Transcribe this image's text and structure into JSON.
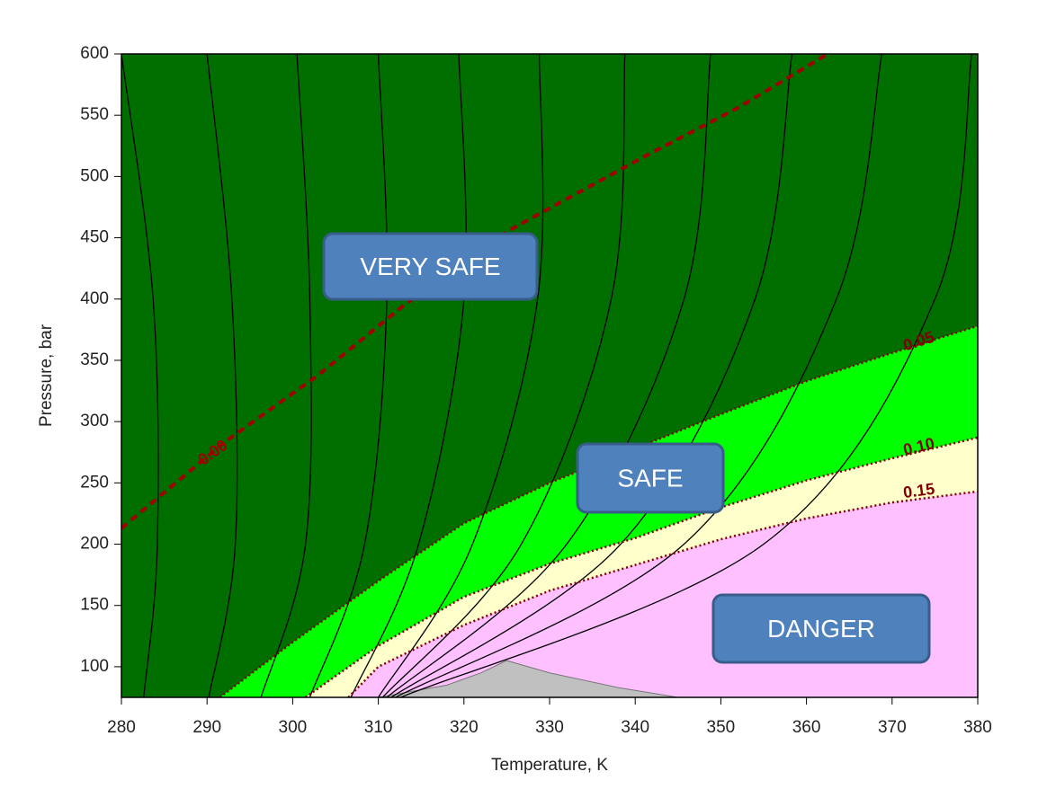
{
  "chart_data": {
    "type": "contour",
    "xlabel": "Temperature, K",
    "ylabel": "Pressure, bar",
    "xlim": [
      280,
      380
    ],
    "ylim": [
      75,
      600
    ],
    "xticks": [
      280,
      290,
      300,
      310,
      320,
      330,
      340,
      350,
      360,
      370,
      380
    ],
    "yticks": [
      100,
      150,
      200,
      250,
      300,
      350,
      400,
      450,
      500,
      550,
      600
    ],
    "background_color": "#006f00",
    "boundaries": [
      {
        "name": "0.05",
        "color": "#800000",
        "fill": "#00ff00",
        "style": "dotted",
        "x": [
          291.5,
          300,
          310,
          320,
          330,
          340,
          350,
          360,
          370,
          380
        ],
        "values": [
          75,
          120,
          170,
          217,
          250,
          278,
          306,
          333,
          356,
          378
        ]
      },
      {
        "name": "0.10",
        "color": "#800000",
        "fill": "#ffffcc",
        "style": "dotted",
        "x": [
          301.5,
          310,
          320,
          330,
          340,
          350,
          360,
          370,
          380
        ],
        "values": [
          75,
          117,
          157,
          184,
          205,
          230,
          252,
          270,
          287
        ]
      },
      {
        "name": "0.15",
        "color": "#800000",
        "fill": "#ffc0ff",
        "style": "dotted",
        "x": [
          306.5,
          310,
          320,
          330,
          340,
          350,
          360,
          370,
          380
        ],
        "values": [
          75,
          100,
          134,
          162,
          183,
          204,
          221,
          234,
          243
        ]
      },
      {
        "name": "0.00",
        "color": "#a00000",
        "style": "dashed",
        "x": [
          280,
          292,
          303,
          313,
          325,
          341,
          352,
          362.5
        ],
        "values": [
          213,
          283,
          338,
          395,
          455,
          516,
          556,
          600
        ]
      }
    ],
    "shaded": {
      "color": "#c0c0c0",
      "x": [
        310,
        318,
        322,
        325,
        330,
        338,
        345
      ],
      "values": [
        75,
        85,
        95,
        105,
        95,
        83,
        75
      ]
    },
    "isolines": [
      {
        "x": [
          280,
          283.7,
          284.2,
          282.6
        ],
        "values": [
          600,
          400,
          200,
          75
        ]
      },
      {
        "x": [
          290,
          292.9,
          293.3,
          290.2
        ],
        "values": [
          600,
          400,
          200,
          75
        ]
      },
      {
        "x": [
          300.5,
          302,
          301.5,
          296.3
        ],
        "values": [
          600,
          400,
          200,
          75
        ]
      },
      {
        "x": [
          310,
          311,
          308.4,
          302
        ],
        "values": [
          600,
          400,
          200,
          75
        ]
      },
      {
        "x": [
          319.4,
          320,
          314.7,
          306.8
        ],
        "values": [
          600,
          400,
          200,
          75
        ]
      },
      {
        "x": [
          328.8,
          328.6,
          321,
          310
        ],
        "values": [
          600,
          400,
          200,
          75
        ]
      },
      {
        "x": [
          338.8,
          337.2,
          326.7,
          310.5
        ],
        "values": [
          600,
          400,
          200,
          75
        ]
      },
      {
        "x": [
          348.8,
          345.7,
          332,
          311
        ],
        "values": [
          600,
          400,
          200,
          75
        ]
      },
      {
        "x": [
          358.3,
          354,
          338.3,
          311.5
        ],
        "values": [
          600,
          400,
          200,
          75
        ]
      },
      {
        "x": [
          368.8,
          363.5,
          345.7,
          312
        ],
        "values": [
          600,
          400,
          200,
          75
        ]
      },
      {
        "x": [
          379.3,
          375,
          355,
          312.6
        ],
        "values": [
          600,
          400,
          200,
          75
        ]
      }
    ],
    "isoline_color": "#000000",
    "annotations": [
      "VERY SAFE",
      "SAFE",
      "DANGER"
    ],
    "annotation_color": "#4f81bd"
  }
}
